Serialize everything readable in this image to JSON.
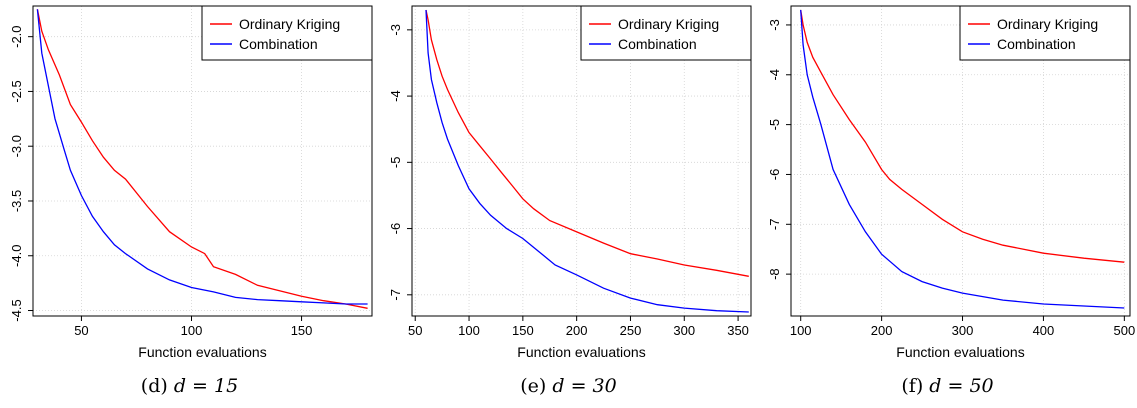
{
  "captions": [
    {
      "prefix": "(d)",
      "math": "d = 15"
    },
    {
      "prefix": "(e)",
      "math": "d = 30"
    },
    {
      "prefix": "(f)",
      "math": "d = 50"
    }
  ],
  "colors": {
    "ordinary_kriging": "#ff0000",
    "combination": "#0000ff",
    "grid": "#d3d3d3"
  },
  "chart_data": [
    {
      "type": "line",
      "xlabel": "Function evaluations",
      "ylabel": "",
      "xlim": [
        28,
        182
      ],
      "ylim": [
        -4.55,
        -1.72
      ],
      "xticks": [
        50,
        100,
        150
      ],
      "yticks": [
        -2.0,
        -2.5,
        -3.0,
        -3.5,
        -4.0,
        -4.5
      ],
      "ytick_labels": [
        "-2.0",
        "-2.5",
        "-3.0",
        "-3.5",
        "-4.0",
        "-4.5"
      ],
      "grid": true,
      "legend_position": "top-right",
      "series": [
        {
          "name": "Ordinary Kriging",
          "color": "#ff0000",
          "x": [
            30,
            32,
            35,
            40,
            45,
            50,
            55,
            60,
            65,
            70,
            80,
            90,
            100,
            106,
            110,
            120,
            130,
            140,
            150,
            160,
            170,
            180
          ],
          "y": [
            -1.75,
            -1.95,
            -2.12,
            -2.35,
            -2.62,
            -2.78,
            -2.95,
            -3.1,
            -3.22,
            -3.3,
            -3.55,
            -3.78,
            -3.92,
            -3.98,
            -4.1,
            -4.17,
            -4.27,
            -4.32,
            -4.37,
            -4.41,
            -4.44,
            -4.48
          ]
        },
        {
          "name": "Combination",
          "color": "#0000ff",
          "x": [
            30,
            32,
            35,
            38,
            42,
            45,
            50,
            55,
            60,
            65,
            70,
            80,
            90,
            100,
            110,
            120,
            130,
            140,
            150,
            160,
            170,
            180
          ],
          "y": [
            -1.75,
            -2.15,
            -2.45,
            -2.75,
            -3.02,
            -3.22,
            -3.45,
            -3.64,
            -3.78,
            -3.9,
            -3.98,
            -4.12,
            -4.22,
            -4.29,
            -4.33,
            -4.38,
            -4.4,
            -4.41,
            -4.42,
            -4.43,
            -4.44,
            -4.44
          ]
        }
      ]
    },
    {
      "type": "line",
      "xlabel": "Function evaluations",
      "ylabel": "",
      "xlim": [
        47,
        362
      ],
      "ylim": [
        -7.32,
        -2.64
      ],
      "xticks": [
        50,
        100,
        150,
        200,
        250,
        300,
        350
      ],
      "yticks": [
        -3,
        -4,
        -5,
        -6,
        -7
      ],
      "ytick_labels": [
        "-3",
        "-4",
        "-5",
        "-6",
        "-7"
      ],
      "grid": true,
      "legend_position": "top-right",
      "series": [
        {
          "name": "Ordinary Kriging",
          "color": "#ff0000",
          "x": [
            60,
            62,
            65,
            70,
            75,
            80,
            90,
            100,
            110,
            120,
            130,
            140,
            150,
            160,
            175,
            200,
            225,
            250,
            275,
            300,
            330,
            360
          ],
          "y": [
            -2.7,
            -2.85,
            -3.15,
            -3.45,
            -3.7,
            -3.9,
            -4.25,
            -4.55,
            -4.75,
            -4.95,
            -5.15,
            -5.35,
            -5.55,
            -5.7,
            -5.88,
            -6.05,
            -6.22,
            -6.38,
            -6.46,
            -6.55,
            -6.63,
            -6.72
          ]
        },
        {
          "name": "Combination",
          "color": "#0000ff",
          "x": [
            60,
            62,
            65,
            70,
            75,
            80,
            90,
            100,
            110,
            120,
            135,
            150,
            165,
            180,
            200,
            225,
            250,
            275,
            300,
            330,
            360
          ],
          "y": [
            -2.7,
            -3.35,
            -3.75,
            -4.1,
            -4.4,
            -4.65,
            -5.05,
            -5.4,
            -5.62,
            -5.8,
            -6.0,
            -6.15,
            -6.35,
            -6.55,
            -6.7,
            -6.9,
            -7.05,
            -7.15,
            -7.2,
            -7.24,
            -7.26
          ]
        }
      ]
    },
    {
      "type": "line",
      "xlabel": "Function evaluations",
      "ylabel": "",
      "xlim": [
        88,
        507
      ],
      "ylim": [
        -8.84,
        -2.62
      ],
      "xticks": [
        100,
        200,
        300,
        400,
        500
      ],
      "yticks": [
        -3,
        -4,
        -5,
        -6,
        -7,
        -8
      ],
      "ytick_labels": [
        "-3",
        "-4",
        "-5",
        "-6",
        "-7",
        "-8"
      ],
      "grid": true,
      "legend_position": "top-right",
      "series": [
        {
          "name": "Ordinary Kriging",
          "color": "#ff0000",
          "x": [
            100,
            103,
            108,
            115,
            125,
            140,
            160,
            180,
            200,
            210,
            225,
            250,
            275,
            300,
            325,
            350,
            400,
            450,
            500
          ],
          "y": [
            -2.7,
            -3.0,
            -3.35,
            -3.65,
            -3.95,
            -4.4,
            -4.9,
            -5.35,
            -5.9,
            -6.1,
            -6.3,
            -6.6,
            -6.9,
            -7.15,
            -7.3,
            -7.42,
            -7.58,
            -7.68,
            -7.76
          ]
        },
        {
          "name": "Combination",
          "color": "#0000ff",
          "x": [
            100,
            103,
            108,
            115,
            125,
            140,
            160,
            180,
            200,
            225,
            250,
            275,
            300,
            350,
            400,
            450,
            500
          ],
          "y": [
            -2.7,
            -3.4,
            -4.0,
            -4.45,
            -5.0,
            -5.9,
            -6.6,
            -7.15,
            -7.6,
            -7.95,
            -8.15,
            -8.28,
            -8.38,
            -8.52,
            -8.6,
            -8.64,
            -8.68
          ]
        }
      ]
    }
  ]
}
